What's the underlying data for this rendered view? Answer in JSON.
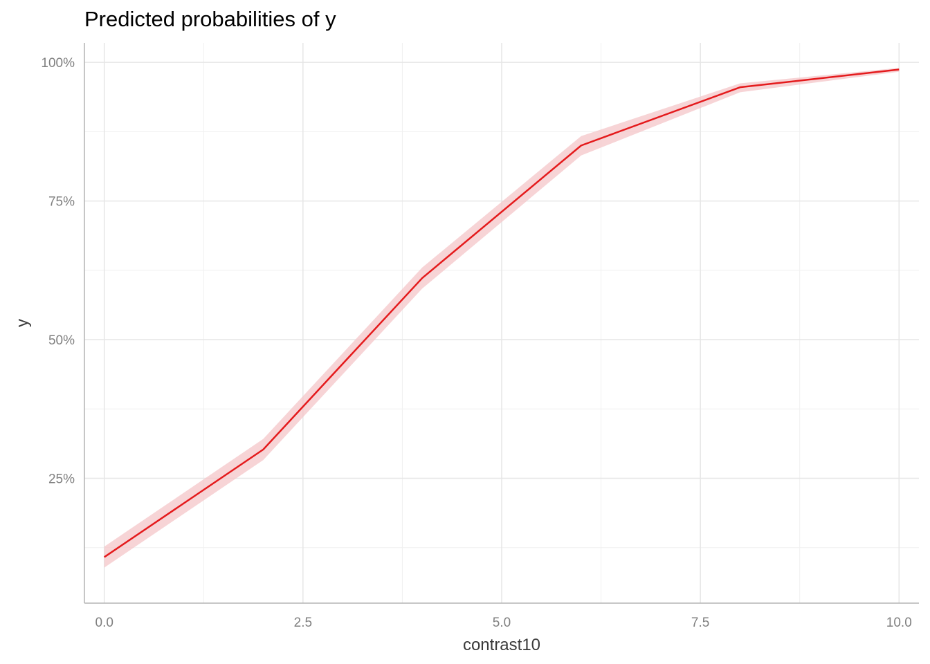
{
  "chart_data": {
    "type": "line",
    "title": "Predicted probabilities of y",
    "xlabel": "contrast10",
    "ylabel": "y",
    "xlim": [
      -0.25,
      10.25
    ],
    "ylim": [
      0.025,
      1.035
    ],
    "x_ticks": [
      0,
      2.5,
      5,
      7.5,
      10
    ],
    "x_tick_labels": [
      "0.0",
      "2.5",
      "5.0",
      "7.5",
      "10.0"
    ],
    "y_ticks": [
      0.25,
      0.5,
      0.75,
      1.0
    ],
    "y_tick_labels": [
      "25%",
      "50%",
      "75%",
      "100%"
    ],
    "grid": true,
    "legend": "none",
    "line_color": "#e41a1c",
    "ribbon_color": "#f4c6c8",
    "series": [
      {
        "x": [
          0,
          2,
          4,
          6,
          8,
          10
        ],
        "y": [
          0.108,
          0.302,
          0.611,
          0.85,
          0.955,
          0.987
        ],
        "lower": [
          0.089,
          0.283,
          0.592,
          0.832,
          0.946,
          0.983
        ],
        "upper": [
          0.127,
          0.321,
          0.63,
          0.867,
          0.962,
          0.99
        ]
      }
    ]
  }
}
